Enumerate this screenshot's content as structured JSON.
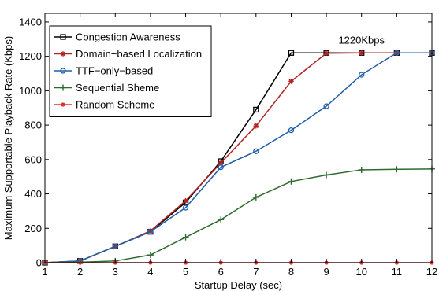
{
  "chart_data": {
    "type": "line",
    "title": "",
    "xlabel": "Startup Delay (sec)",
    "ylabel": "Maximum Supportable Playback Rate (Kbps)",
    "x": [
      1,
      2,
      3,
      4,
      5,
      6,
      7,
      8,
      9,
      10,
      11,
      12
    ],
    "xlim": [
      1,
      12
    ],
    "ylim": [
      0,
      1450
    ],
    "xticks": [
      1,
      2,
      3,
      4,
      5,
      6,
      7,
      8,
      9,
      10,
      11,
      12
    ],
    "yticks": [
      0,
      200,
      400,
      600,
      800,
      1000,
      1200,
      1400
    ],
    "grid": false,
    "legend_position": "top-left",
    "annotation": {
      "text": "1220Kbps",
      "x": 10,
      "y": 1275
    },
    "series": [
      {
        "name": "Congestion Awareness",
        "color": "#000000",
        "marker": "square",
        "values": [
          0,
          10,
          95,
          180,
          350,
          590,
          890,
          1220,
          1220,
          1220,
          1220,
          1220
        ]
      },
      {
        "name": "Domain−based Localization",
        "color": "#b22222",
        "marker": "star",
        "values": [
          0,
          10,
          95,
          185,
          360,
          580,
          795,
          1055,
          1218,
          1220,
          1220,
          1220
        ]
      },
      {
        "name": "TTF−only−based",
        "color": "#1f5fa8",
        "marker": "circle",
        "values": [
          0,
          10,
          95,
          180,
          320,
          555,
          648,
          770,
          910,
          1093,
          1220,
          1220
        ]
      },
      {
        "name": "Sequential Sheme",
        "color": "#2e6b2e",
        "marker": "plus",
        "values": [
          0,
          3,
          10,
          45,
          148,
          250,
          380,
          472,
          510,
          540,
          543,
          545
        ]
      },
      {
        "name": "Random Scheme",
        "color": "#e03030",
        "marker": "dot",
        "values": [
          0,
          0,
          0,
          0,
          0,
          0,
          0,
          0,
          0,
          0,
          0,
          0
        ]
      }
    ]
  }
}
